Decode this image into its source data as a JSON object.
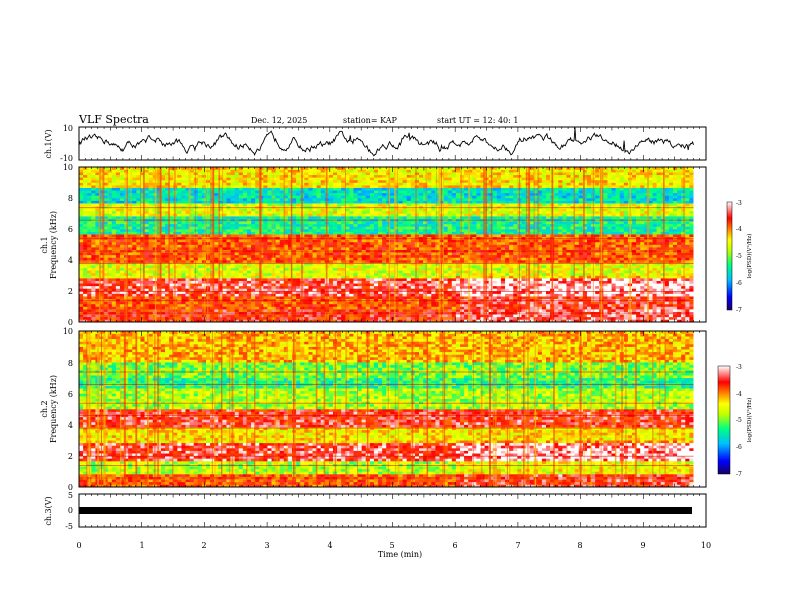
{
  "header": {
    "title": "VLF Spectra",
    "date": "Dec. 12, 2025",
    "station": "station= KAP",
    "start": "start  UT  =   12: 40: 1"
  },
  "colors": {
    "background": "#ffffff",
    "trace": "#000000",
    "colormap": [
      "#1a0060",
      "#0000ff",
      "#00bfff",
      "#00ff80",
      "#bfff00",
      "#ffff00",
      "#ff8000",
      "#ff0000",
      "#ffffff"
    ]
  },
  "chart_data": [
    {
      "type": "line",
      "id": "ch1-waveform",
      "ylabel": "ch.1(V)",
      "ylim": [
        -10,
        10
      ],
      "yticks": [
        "10",
        "-10"
      ],
      "x_range_min": [
        0,
        9.8
      ],
      "description_values": "oscillating waveform roughly between -4 and 5 V with occasional spikes"
    },
    {
      "type": "heatmap",
      "id": "ch1-spectrogram",
      "ylabel": "ch.1",
      "ylabel2": "Frequency  (kHz)",
      "ylim": [
        0,
        10
      ],
      "yticks": [
        "0",
        "2",
        "4",
        "6",
        "8",
        "10"
      ],
      "x_range_min": [
        0,
        9.8
      ],
      "colorbar": {
        "label": "log(PSD)(V²/Hz)",
        "ticks": [
          "-3",
          "-4",
          "-5",
          "-6",
          "-7"
        ],
        "range": [
          -7,
          -3
        ]
      },
      "bands_khz": [
        {
          "from": 0.0,
          "to": 0.8,
          "level": -3.6
        },
        {
          "from": 0.8,
          "to": 1.6,
          "level": -3.8
        },
        {
          "from": 1.6,
          "to": 2.8,
          "level": -3.4
        },
        {
          "from": 2.8,
          "to": 3.8,
          "level": -4.6
        },
        {
          "from": 3.8,
          "to": 5.6,
          "level": -3.8
        },
        {
          "from": 5.6,
          "to": 6.8,
          "level": -5.4
        },
        {
          "from": 6.8,
          "to": 7.6,
          "level": -4.6
        },
        {
          "from": 7.6,
          "to": 8.6,
          "level": -5.6
        },
        {
          "from": 8.6,
          "to": 10.0,
          "level": -4.4
        }
      ]
    },
    {
      "type": "heatmap",
      "id": "ch2-spectrogram",
      "ylabel": "ch.2",
      "ylabel2": "Frequency  (kHz)",
      "ylim": [
        0,
        10
      ],
      "yticks": [
        "0",
        "2",
        "4",
        "6",
        "8",
        "10"
      ],
      "x_range_min": [
        0,
        9.8
      ],
      "colorbar": {
        "label": "log(PSD)(V²/Hz)",
        "ticks": [
          "-3",
          "-4",
          "-5",
          "-6",
          "-7"
        ],
        "range": [
          -7,
          -3
        ]
      },
      "bands_khz": [
        {
          "from": 0.0,
          "to": 0.8,
          "level": -3.8
        },
        {
          "from": 0.8,
          "to": 1.6,
          "level": -4.8
        },
        {
          "from": 1.6,
          "to": 2.8,
          "level": -3.4
        },
        {
          "from": 2.8,
          "to": 3.8,
          "level": -4.4
        },
        {
          "from": 3.8,
          "to": 5.0,
          "level": -3.5
        },
        {
          "from": 5.0,
          "to": 6.2,
          "level": -4.8
        },
        {
          "from": 6.2,
          "to": 7.0,
          "level": -5.3
        },
        {
          "from": 7.0,
          "to": 8.0,
          "level": -5.0
        },
        {
          "from": 8.0,
          "to": 10.0,
          "level": -4.2
        }
      ]
    },
    {
      "type": "line",
      "id": "ch3-waveform",
      "ylabel": "ch.3(V)",
      "ylim": [
        -5,
        5
      ],
      "yticks": [
        "5",
        "0",
        "-5"
      ],
      "x_range_min": [
        0,
        9.8
      ],
      "description_values": "flat band near -1 V"
    }
  ],
  "xaxis": {
    "label": "Time  (min)",
    "ticks": [
      "0",
      "1",
      "2",
      "3",
      "4",
      "5",
      "6",
      "7",
      "8",
      "9",
      "10"
    ],
    "range": [
      0,
      10
    ]
  }
}
